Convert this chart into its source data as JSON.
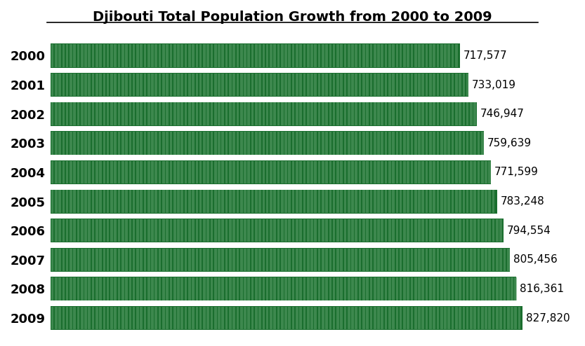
{
  "title": "Djibouti Total Population Growth from 2000 to 2009",
  "years": [
    "2000",
    "2001",
    "2002",
    "2003",
    "2004",
    "2005",
    "2006",
    "2007",
    "2008",
    "2009"
  ],
  "values": [
    717577,
    733019,
    746947,
    759639,
    771599,
    783248,
    794554,
    805456,
    816361,
    827820
  ],
  "labels": [
    "717,577",
    "733,019",
    "746,947",
    "759,639",
    "771,599",
    "783,248",
    "794,554",
    "805,456",
    "816,361",
    "827,820"
  ],
  "bar_color": "#1a6e2e",
  "stripe_color": "#5a9e6a",
  "background_color": "#ffffff",
  "text_color": "#000000",
  "title_fontsize": 14,
  "label_fontsize": 11,
  "ytick_fontsize": 13,
  "xlim": [
    0,
    900000
  ],
  "figure_width": 8.33,
  "figure_height": 4.94,
  "dpi": 100
}
